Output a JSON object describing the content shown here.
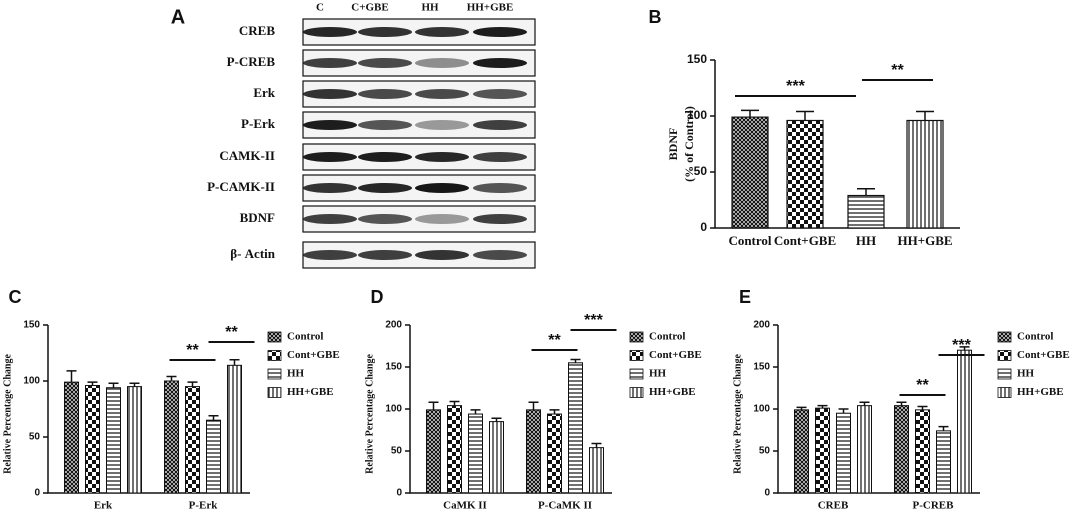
{
  "blot": {
    "label": "A",
    "columns": [
      "C",
      "C+GBE",
      "HH",
      "HH+GBE"
    ],
    "rows": [
      "CREB",
      "P-CREB",
      "Erk",
      "P-Erk",
      "CAMK-II",
      "P-CAMK-II",
      "BDNF",
      "β- Actin"
    ]
  },
  "chart_data": [
    {
      "type": "bar",
      "panel": "B",
      "y_label": [
        "BDNF",
        "(% of Control)"
      ],
      "categories": [
        "Control",
        "Cont+GBE",
        "HH",
        "HH+GBE"
      ],
      "values": [
        99,
        96,
        29,
        96
      ],
      "errors": [
        6,
        8,
        6,
        8
      ],
      "patterns": [
        "crosshatch",
        "checker",
        "hlines",
        "vlines"
      ],
      "color": "#111111",
      "ylim": [
        0,
        150
      ],
      "yticks": [
        0,
        50,
        100,
        150
      ],
      "annotations": [
        "***",
        "**"
      ]
    },
    {
      "type": "grouped_bar",
      "panel": "C",
      "y_label": "Relative Percentage Change",
      "categories": [
        "Erk",
        "P-Erk"
      ],
      "series": [
        {
          "name": "Control",
          "pattern": "crosshatch",
          "values": [
            99,
            100
          ],
          "errors": [
            10,
            4
          ]
        },
        {
          "name": "Cont+GBE",
          "pattern": "checker",
          "values": [
            96,
            95
          ],
          "errors": [
            3,
            4
          ]
        },
        {
          "name": "HH",
          "pattern": "hlines",
          "values": [
            94,
            65
          ],
          "errors": [
            4,
            4
          ]
        },
        {
          "name": "HH+GBE",
          "pattern": "vlines",
          "values": [
            95,
            114
          ],
          "errors": [
            3,
            5
          ]
        }
      ],
      "color": "#111111",
      "ylim": [
        0,
        150
      ],
      "yticks": [
        0,
        50,
        100,
        150
      ],
      "annotations": [
        "**",
        "**"
      ],
      "legend": "right"
    },
    {
      "type": "grouped_bar",
      "panel": "D",
      "y_label": "Relative Percentage Change",
      "categories": [
        "CaMK II",
        "P-CaMK II"
      ],
      "series": [
        {
          "name": "Control",
          "pattern": "crosshatch",
          "values": [
            99,
            99
          ],
          "errors": [
            9,
            9
          ]
        },
        {
          "name": "Cont+GBE",
          "pattern": "checker",
          "values": [
            104,
            94
          ],
          "errors": [
            5,
            5
          ]
        },
        {
          "name": "HH",
          "pattern": "hlines",
          "values": [
            94,
            155
          ],
          "errors": [
            5,
            4
          ]
        },
        {
          "name": "HH+GBE",
          "pattern": "vlines",
          "values": [
            85,
            54
          ],
          "errors": [
            4,
            5
          ]
        }
      ],
      "color": "#111111",
      "ylim": [
        0,
        200
      ],
      "yticks": [
        0,
        50,
        100,
        150,
        200
      ],
      "annotations": [
        "**",
        "***"
      ],
      "legend": "right"
    },
    {
      "type": "grouped_bar",
      "panel": "E",
      "y_label": "Relative Percentage Change",
      "categories": [
        "CREB",
        "P-CREB"
      ],
      "series": [
        {
          "name": "Control",
          "pattern": "crosshatch",
          "values": [
            99,
            104
          ],
          "errors": [
            3,
            4
          ]
        },
        {
          "name": "Cont+GBE",
          "pattern": "checker",
          "values": [
            101,
            99
          ],
          "errors": [
            3,
            4
          ]
        },
        {
          "name": "HH",
          "pattern": "hlines",
          "values": [
            95,
            74
          ],
          "errors": [
            5,
            5
          ]
        },
        {
          "name": "HH+GBE",
          "pattern": "vlines",
          "values": [
            104,
            170
          ],
          "errors": [
            4,
            4
          ]
        }
      ],
      "color": "#111111",
      "ylim": [
        0,
        200
      ],
      "yticks": [
        0,
        50,
        100,
        150,
        200
      ],
      "annotations": [
        "**",
        "***"
      ],
      "legend": "right"
    }
  ]
}
